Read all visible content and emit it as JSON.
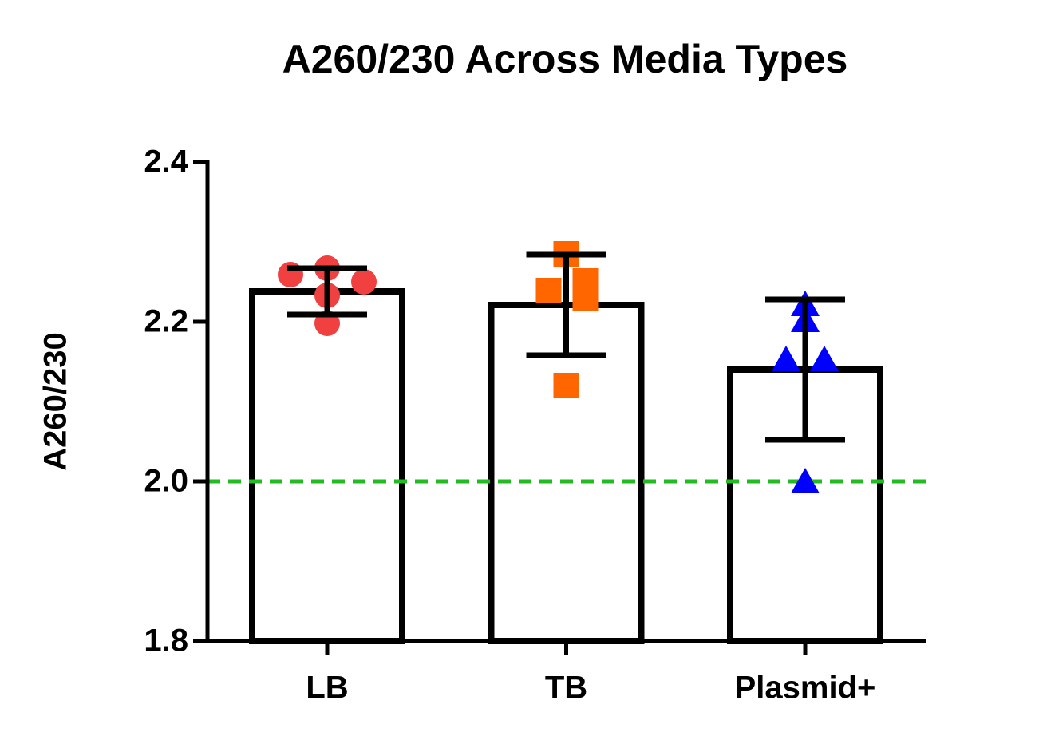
{
  "chart_data": {
    "type": "bar",
    "title": "A260/230 Across Media Types",
    "y_label": "A260/230",
    "categories": [
      "LB",
      "TB",
      "Plasmid+"
    ],
    "values": [
      2.238,
      2.221,
      2.14
    ],
    "errors": [
      0.029,
      0.063,
      0.088
    ],
    "points": [
      [
        2.259,
        2.267,
        2.25,
        2.233,
        2.198
      ],
      [
        2.285,
        2.239,
        2.251,
        2.229,
        2.12
      ],
      [
        2.22,
        2.2,
        2.151,
        2.151,
        1.998
      ]
    ],
    "point_colors": [
      "#f04040",
      "#ff6600",
      "#0000ff"
    ],
    "markers": [
      "circle",
      "square",
      "triangle"
    ],
    "bar_color": "#ffffff",
    "reference_line": {
      "value": 2,
      "color": "#22bb22",
      "style": "dashed"
    },
    "ylim": [
      1.8,
      2.4
    ],
    "yticks": [
      {
        "value": 1.8,
        "label": "1.8"
      },
      {
        "value": 2,
        "label": "2.0"
      },
      2.2,
      2.4
    ]
  }
}
